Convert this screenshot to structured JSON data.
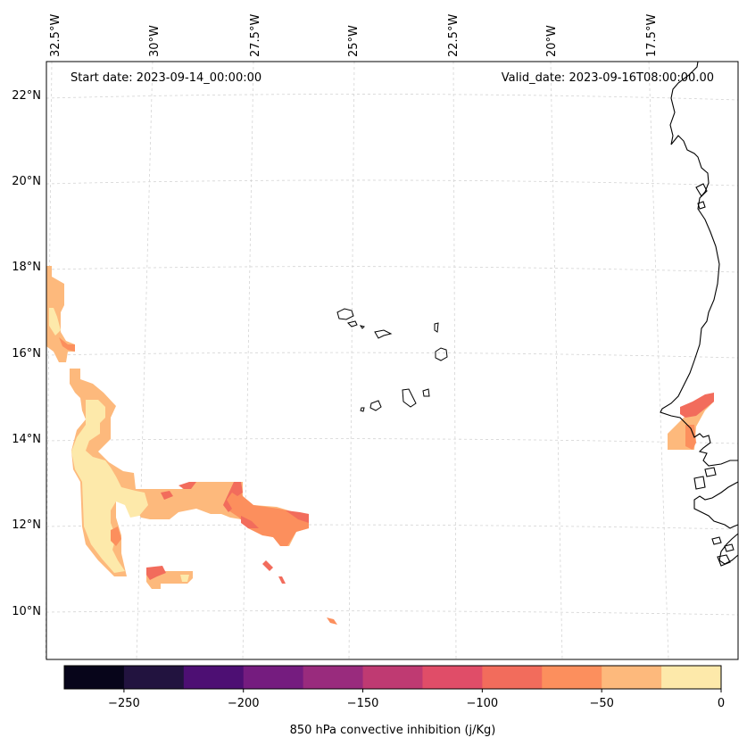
{
  "header": {
    "start_date": "Start date: 2023-09-14_00:00:00",
    "valid_date": "Valid_date: 2023-09-16T08:00:00.00"
  },
  "axes": {
    "lon_labels": [
      "32.5°W",
      "30°W",
      "27.5°W",
      "25°W",
      "22.5°W",
      "20°W",
      "17.5°W"
    ],
    "lat_labels": [
      "22°N",
      "20°N",
      "18°N",
      "16°N",
      "14°N",
      "12°N",
      "10°N"
    ]
  },
  "colorbar": {
    "label": "850 hPa convective inhibition (j/Kg)",
    "tick_labels": [
      "−250",
      "−200",
      "−150",
      "−100",
      "−50",
      "0"
    ],
    "colors": [
      "#07051a",
      "#22133f",
      "#4d0f73",
      "#751c7f",
      "#992b7d",
      "#bf3a72",
      "#e04d68",
      "#f26c5c",
      "#fc8f5d",
      "#fdb97c",
      "#fde9aa"
    ],
    "levels": [
      -275,
      -250,
      -225,
      -200,
      -175,
      -150,
      -125,
      -100,
      -75,
      -50,
      -25,
      0
    ]
  },
  "colors": {
    "coastline": "#000000",
    "gridline": "#cccccc",
    "frame": "#000000"
  }
}
